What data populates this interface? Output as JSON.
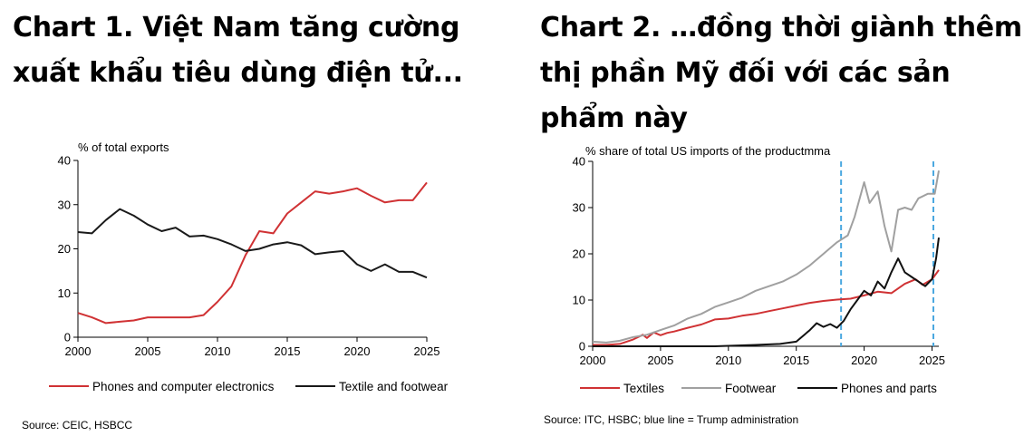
{
  "chart_data": [
    {
      "type": "line",
      "title": "Chart 1. Việt Nam tăng cường xuất khẩu tiêu dùng điện tử...",
      "ylabel": "% of total exports",
      "xlim": [
        2000,
        2025
      ],
      "ylim": [
        0,
        40
      ],
      "x_ticks": [
        2000,
        2005,
        2010,
        2015,
        2020,
        2025
      ],
      "y_ticks": [
        0,
        10,
        20,
        30,
        40
      ],
      "legend_position": "bottom",
      "source": "Source: CEIC, HSBCC",
      "series": [
        {
          "name": "Phones and computer electronics",
          "color": "#d03234",
          "x": [
            2000,
            2001,
            2002,
            2003,
            2004,
            2005,
            2006,
            2007,
            2008,
            2009,
            2010,
            2011,
            2012,
            2013,
            2014,
            2015,
            2016,
            2017,
            2018,
            2019,
            2020,
            2021,
            2022,
            2023,
            2024,
            2025
          ],
          "y": [
            5.5,
            4.5,
            3.2,
            3.5,
            3.8,
            4.5,
            4.5,
            4.5,
            4.5,
            5,
            8,
            11.5,
            18.5,
            24,
            23.5,
            28,
            30.5,
            33,
            32.5,
            33,
            33.7,
            32,
            30.5,
            31,
            31,
            35
          ]
        },
        {
          "name": "Textile and footwear",
          "color": "#1a1a1a",
          "x": [
            2000,
            2001,
            2002,
            2003,
            2004,
            2005,
            2006,
            2007,
            2008,
            2009,
            2010,
            2011,
            2012,
            2013,
            2014,
            2015,
            2016,
            2017,
            2018,
            2019,
            2020,
            2021,
            2022,
            2023,
            2024,
            2025
          ],
          "y": [
            23.8,
            23.5,
            26.5,
            29,
            27.5,
            25.5,
            24,
            24.8,
            22.8,
            23,
            22.2,
            21,
            19.5,
            20,
            21,
            21.5,
            20.8,
            18.8,
            19.2,
            19.5,
            16.5,
            15,
            16.5,
            14.8,
            14.8,
            13.5
          ]
        }
      ]
    },
    {
      "type": "line",
      "title": "Chart 2. …đồng thời giành thêm thị phần Mỹ đối với các sản phẩm này",
      "ylabel": "% share of total US imports of the productmma",
      "xlim": [
        2000,
        2025.5
      ],
      "ylim": [
        0,
        40
      ],
      "x_ticks": [
        2000,
        2005,
        2010,
        2015,
        2020,
        2025
      ],
      "y_ticks": [
        0,
        10,
        20,
        30,
        40
      ],
      "legend_position": "bottom",
      "annotations": [
        {
          "type": "vertical-dashed-line",
          "x": 2018.3,
          "color": "#4aa8e0"
        },
        {
          "type": "vertical-dashed-line",
          "x": 2025.1,
          "color": "#4aa8e0"
        }
      ],
      "source": "Source: ITC, HSBC; blue line = Trump administration",
      "series": [
        {
          "name": "Textiles",
          "color": "#d03234",
          "x": [
            2000,
            2001,
            2002,
            2003,
            2003.7,
            2004,
            2004.5,
            2005,
            2005.5,
            2006,
            2007,
            2008,
            2009,
            2010,
            2011,
            2012,
            2013,
            2014,
            2015,
            2016,
            2017,
            2018,
            2019,
            2020,
            2021,
            2022,
            2023,
            2023.8,
            2024.3,
            2025,
            2025.5
          ],
          "y": [
            0.3,
            0.3,
            0.5,
            1.5,
            2.5,
            1.8,
            3,
            2.4,
            2.9,
            3.2,
            4,
            4.7,
            5.8,
            6,
            6.6,
            7,
            7.6,
            8.2,
            8.8,
            9.4,
            9.8,
            10.1,
            10.3,
            11,
            11.8,
            11.5,
            13.5,
            14.5,
            13.3,
            14.5,
            16.5
          ]
        },
        {
          "name": "Footwear",
          "color": "#a0a0a0",
          "x": [
            2000,
            2001,
            2002,
            2003,
            2004,
            2005,
            2006,
            2007,
            2008,
            2009,
            2010,
            2011,
            2012,
            2013,
            2014,
            2015,
            2016,
            2017,
            2018,
            2018.8,
            2019.3,
            2020,
            2020.4,
            2021,
            2021.5,
            2022,
            2022.5,
            2023,
            2023.5,
            2024,
            2024.7,
            2025.2,
            2025.5
          ],
          "y": [
            1,
            0.8,
            1.2,
            2,
            2.5,
            3.5,
            4.5,
            6,
            7,
            8.5,
            9.5,
            10.5,
            12,
            13,
            14,
            15.5,
            17.5,
            20,
            22.5,
            24,
            28,
            35.5,
            31,
            33.5,
            26,
            20.5,
            29.5,
            30,
            29.5,
            32,
            33,
            33,
            38
          ]
        },
        {
          "name": "Phones and parts",
          "color": "#111111",
          "x": [
            2000,
            2009,
            2012,
            2013.8,
            2015,
            2016,
            2016.5,
            2017,
            2017.5,
            2018,
            2018.5,
            2019,
            2019.5,
            2020,
            2020.5,
            2021,
            2021.5,
            2022,
            2022.5,
            2023,
            2023.5,
            2024,
            2024.5,
            2025,
            2025.3,
            2025.5
          ],
          "y": [
            0,
            0,
            0.3,
            0.5,
            1,
            3.5,
            5,
            4.2,
            4.8,
            4,
            5.5,
            8,
            10,
            12,
            11,
            14,
            12.5,
            16,
            19,
            16,
            15,
            14,
            13,
            14.5,
            19,
            23.5
          ]
        }
      ]
    }
  ]
}
